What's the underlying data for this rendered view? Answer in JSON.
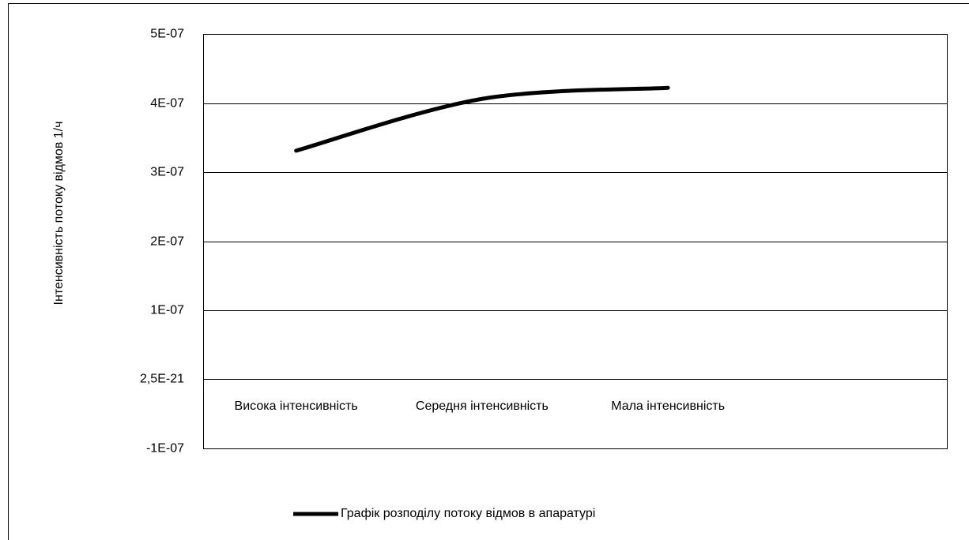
{
  "chart_data": {
    "type": "line",
    "y_label": "Інтенсивність потоку відмов 1/ч",
    "categories": [
      "Висока інтенсивність",
      "Середня інтенсивність",
      "Мала інтенсивність",
      null
    ],
    "series": [
      {
        "name": "Графік розподілу потоку відмов в апаратурі",
        "color": "#000000",
        "values": [
          3.31e-07,
          4.06e-07,
          4.22e-07,
          null
        ]
      }
    ],
    "ylim": [
      -1e-07,
      5e-07
    ],
    "yticks": [
      {
        "value": -1e-07,
        "label": "-1E-07"
      },
      {
        "value": 2.5e-21,
        "label": "2,5E-21"
      },
      {
        "value": 1e-07,
        "label": "1E-07"
      },
      {
        "value": 2e-07,
        "label": "2E-07"
      },
      {
        "value": 3e-07,
        "label": "3E-07"
      },
      {
        "value": 4e-07,
        "label": "4E-07"
      },
      {
        "value": 5e-07,
        "label": "5E-07"
      }
    ],
    "grid": true,
    "legend": "bottom"
  }
}
